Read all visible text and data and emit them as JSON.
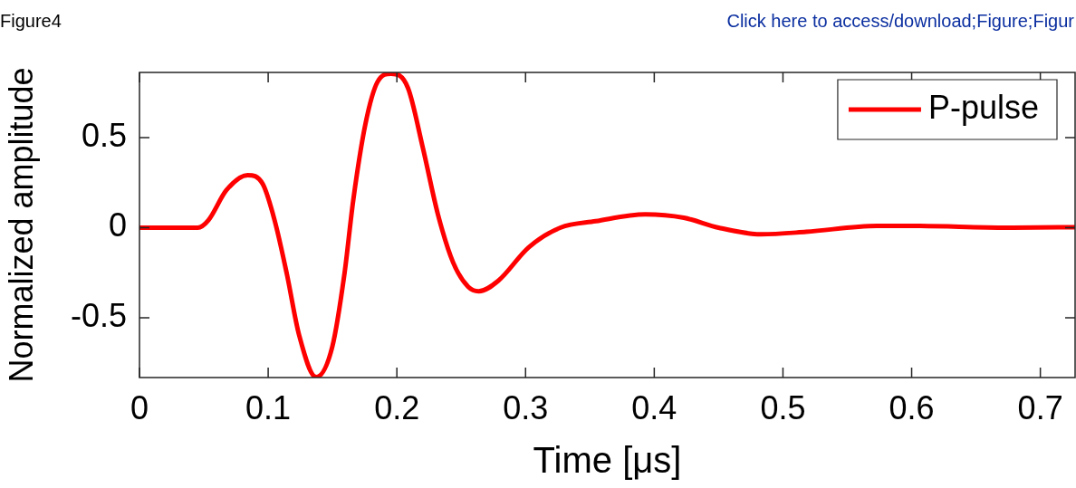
{
  "chart_data": {
    "type": "line",
    "xlabel": "Time [μs]",
    "ylabel": "Normalized amplitude",
    "annotations": [
      "Figure4",
      "Click here to access/download;Figure;Figur"
    ],
    "x": [
      0,
      0.0453,
      0.0535,
      0.0676,
      0.084,
      0.0958,
      0.105,
      0.1146,
      0.124,
      0.1373,
      0.1498,
      0.1592,
      0.1662,
      0.1756,
      0.185,
      0.1955,
      0.2085,
      0.2202,
      0.2319,
      0.2437,
      0.2554,
      0.2636,
      0.2789,
      0.3023,
      0.327,
      0.3545,
      0.393,
      0.423,
      0.45,
      0.483,
      0.518,
      0.573,
      0.6,
      0.674,
      0.727
    ],
    "series": [
      {
        "name": "P-pulse",
        "color": "#ff0000",
        "values": [
          0,
          0,
          0.041,
          0.209,
          0.292,
          0.242,
          0.041,
          -0.26,
          -0.595,
          -0.83,
          -0.662,
          -0.26,
          0.158,
          0.577,
          0.81,
          0.855,
          0.778,
          0.443,
          0.074,
          -0.193,
          -0.328,
          -0.353,
          -0.294,
          -0.11,
          0,
          0.036,
          0.074,
          0.055,
          0,
          -0.037,
          -0.023,
          0.01,
          0.01,
          0,
          0.003
        ]
      }
    ],
    "xlim": [
      0,
      0.727
    ],
    "ylim": [
      -0.832,
      0.862
    ],
    "xticks": [
      0,
      0.1,
      0.2,
      0.3,
      0.4,
      0.5,
      0.6,
      0.7
    ],
    "yticks": [
      -0.5,
      0,
      0.5
    ],
    "legend": "top right",
    "line_style": "solid",
    "marker": "none",
    "grid": false
  }
}
